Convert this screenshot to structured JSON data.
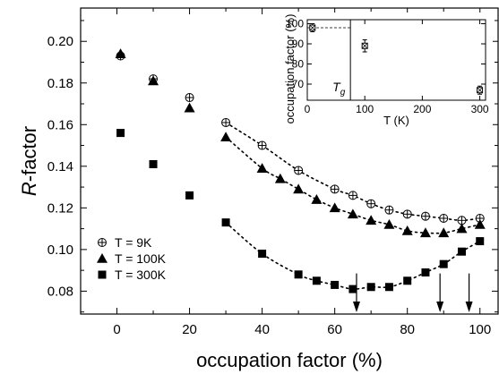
{
  "chart_data": [
    {
      "type": "scatter",
      "xlabel": "occupation factor (%)",
      "ylabel": "R-factor",
      "ylabel_italic_part": "R",
      "ylabel_rest": "-factor",
      "xlim": [
        -10,
        105
      ],
      "ylim": [
        0.069,
        0.216
      ],
      "x_ticks": [
        0,
        20,
        40,
        60,
        80,
        100
      ],
      "y_ticks": [
        0.08,
        0.1,
        0.12,
        0.14,
        0.16,
        0.18,
        0.2
      ],
      "y_tick_labels": [
        "0.08",
        "0.10",
        "0.12",
        "0.14",
        "0.16",
        "0.18",
        "0.20"
      ],
      "x_tick_labels": [
        "0",
        "20",
        "40",
        "60",
        "80",
        "100"
      ],
      "legend_position": "bottom-left",
      "series": [
        {
          "name": "T = 9K",
          "marker": "circle-plus",
          "x": [
            1,
            10,
            20,
            30,
            40,
            50,
            60,
            65,
            70,
            75,
            80,
            85,
            90,
            95,
            100
          ],
          "y": [
            0.193,
            0.182,
            0.173,
            0.161,
            0.15,
            0.138,
            0.129,
            0.126,
            0.122,
            0.119,
            0.117,
            0.116,
            0.115,
            0.114,
            0.115
          ]
        },
        {
          "name": "T = 100K",
          "marker": "triangle",
          "x": [
            1,
            10,
            20,
            30,
            40,
            45,
            50,
            55,
            60,
            65,
            70,
            75,
            80,
            85,
            90,
            95,
            100
          ],
          "y": [
            0.194,
            0.181,
            0.168,
            0.154,
            0.139,
            0.134,
            0.129,
            0.124,
            0.12,
            0.117,
            0.114,
            0.112,
            0.109,
            0.108,
            0.108,
            0.11,
            0.112
          ]
        },
        {
          "name": "T = 300K",
          "marker": "square",
          "x": [
            1,
            10,
            20,
            30,
            40,
            50,
            55,
            60,
            65,
            70,
            75,
            80,
            85,
            90,
            95,
            100
          ],
          "y": [
            0.156,
            0.141,
            0.126,
            0.113,
            0.098,
            0.088,
            0.085,
            0.083,
            0.081,
            0.082,
            0.082,
            0.085,
            0.089,
            0.093,
            0.099,
            0.104
          ]
        }
      ],
      "fit_curves": {
        "style": "dotted",
        "x_range": [
          30,
          100
        ]
      },
      "arrows_down_at_x": [
        66,
        89,
        97
      ]
    },
    {
      "type": "scatter",
      "inset": true,
      "xlabel": "T (K)",
      "ylabel": "occupation factor (%)",
      "xlim": [
        0,
        310
      ],
      "ylim": [
        62,
        102
      ],
      "x_ticks": [
        0,
        100,
        200,
        300
      ],
      "x_tick_labels": [
        "0",
        "100",
        "200",
        "300"
      ],
      "y_ticks": [
        70,
        80,
        90,
        100
      ],
      "y_tick_labels": [
        "70",
        "80",
        "90",
        "100"
      ],
      "points": [
        {
          "x": 9,
          "y": 98,
          "err": 2
        },
        {
          "x": 100,
          "y": 89,
          "err": 3
        },
        {
          "x": 300,
          "y": 67,
          "err": 2
        }
      ],
      "dashed_hline_y": 98,
      "vertical_line_x": 75,
      "annotation": "T",
      "annotation_subscript": "g"
    }
  ]
}
